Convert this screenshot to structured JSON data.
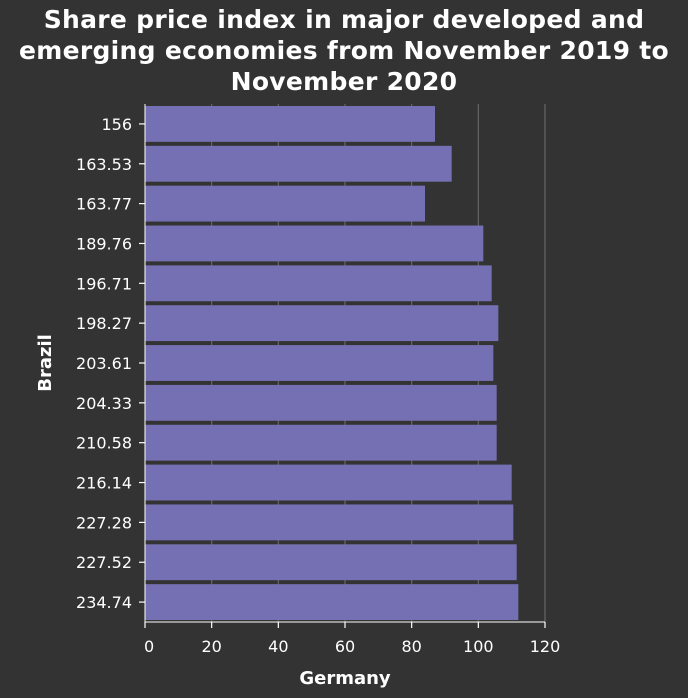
{
  "chart_data": {
    "type": "bar",
    "orientation": "horizontal",
    "title_lines": [
      "Share price index in major developed and",
      "emerging economies from November 2019 to",
      "November 2020"
    ],
    "title": "Share price index in major developed and emerging economies from November 2019 to November 2020",
    "xlabel": "Germany",
    "ylabel": "Brazil",
    "categories": [
      "156",
      "163.53",
      "163.77",
      "189.76",
      "196.71",
      "198.27",
      "203.61",
      "204.33",
      "210.58",
      "216.14",
      "227.28",
      "227.52",
      "234.74"
    ],
    "values": [
      87,
      92,
      84,
      101.5,
      104,
      106,
      104.5,
      105.5,
      105.5,
      110,
      110.5,
      111.5,
      112
    ],
    "xlim": [
      0,
      120
    ],
    "xticks": [
      0,
      20,
      40,
      60,
      80,
      100,
      120
    ],
    "grid": "vertical",
    "colors": {
      "background": "#333333",
      "bar": "#7570b3",
      "grid": "#666666",
      "axis": "#ffffff",
      "text": "#ffffff"
    }
  }
}
